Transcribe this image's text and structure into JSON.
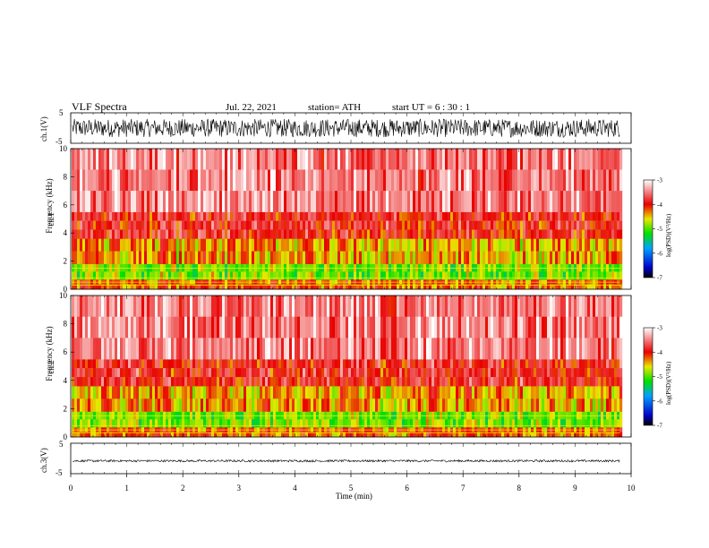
{
  "header": {
    "title": "VLF  Spectra",
    "date": "Jul.  22,  2021",
    "station": "station= ATH",
    "start_ut": "start  UT  =    6  : 30 : 1"
  },
  "colors": {
    "spectrogram_low": "#0000c8",
    "spectrogram_mid_low": "#00e000",
    "spectrogram_mid": "#e8e800",
    "spectrogram_high": "#e80000",
    "spectrogram_max": "#ffffff"
  },
  "chart_data": [
    {
      "type": "line",
      "panel": "ch1-waveform",
      "ylabel": "ch.1(V)",
      "ylim": [
        -5,
        5
      ],
      "yticks": [
        "5",
        "-5"
      ],
      "xlim": [
        0,
        10
      ],
      "data_end_min": 9.8,
      "series": [
        {
          "description_level": "dense oscillating noise, amplitude about ±3 V",
          "amplitude": 3.0
        }
      ]
    },
    {
      "type": "heatmap",
      "panel": "ch1-spectrogram",
      "ylabel": "ch.1\nFrequency  (kHz)",
      "ylim": [
        0,
        10
      ],
      "yticks": [
        "0",
        "2",
        "4",
        "6",
        "8",
        "10"
      ],
      "xlim": [
        0,
        10
      ],
      "data_end_min": 9.8,
      "colorbar": {
        "label": "log(PSD)(V²/Hz)",
        "range": [
          -7,
          -3
        ],
        "ticks": [
          "-3",
          "-4",
          "-5",
          "-6",
          "-7"
        ]
      },
      "bands_khz_logpsd": [
        {
          "from": 0,
          "to": 0.7,
          "logpsd": -4.2
        },
        {
          "from": 0.7,
          "to": 1.8,
          "logpsd": -4.9
        },
        {
          "from": 1.8,
          "to": 3.6,
          "logpsd": -4.4
        },
        {
          "from": 3.6,
          "to": 5.5,
          "logpsd": -3.9
        },
        {
          "from": 5.5,
          "to": 10,
          "logpsd": -3.5
        }
      ]
    },
    {
      "type": "heatmap",
      "panel": "ch2-spectrogram",
      "ylabel": "ch.2\nFrequency  (kHz)",
      "ylim": [
        0,
        10
      ],
      "yticks": [
        "0",
        "2",
        "4",
        "6",
        "8",
        "10"
      ],
      "xlim": [
        0,
        10
      ],
      "data_end_min": 9.8,
      "colorbar": {
        "label": "log(PSD)(V²/Hz)",
        "range": [
          -7,
          -3
        ],
        "ticks": [
          "-3",
          "-4",
          "-5",
          "-6",
          "-7"
        ]
      },
      "bands_khz_logpsd": [
        {
          "from": 0,
          "to": 0.7,
          "logpsd": -4.2
        },
        {
          "from": 0.7,
          "to": 1.8,
          "logpsd": -4.9
        },
        {
          "from": 1.8,
          "to": 3.6,
          "logpsd": -4.4
        },
        {
          "from": 3.6,
          "to": 5.5,
          "logpsd": -3.9
        },
        {
          "from": 5.5,
          "to": 10,
          "logpsd": -3.5
        }
      ]
    },
    {
      "type": "line",
      "panel": "ch3-waveform",
      "ylabel": "ch.3(V)",
      "ylim": [
        -5,
        5
      ],
      "yticks": [
        "5",
        "-5"
      ],
      "xlim": [
        0,
        10
      ],
      "data_end_min": 9.8,
      "series": [
        {
          "description_level": "flat trace with small noise",
          "offset": -0.8,
          "amplitude": 0.35
        }
      ]
    }
  ],
  "xaxis": {
    "label": "Time  (min)",
    "ticks": [
      "0",
      "1",
      "2",
      "3",
      "4",
      "5",
      "6",
      "7",
      "8",
      "9",
      "10"
    ]
  }
}
